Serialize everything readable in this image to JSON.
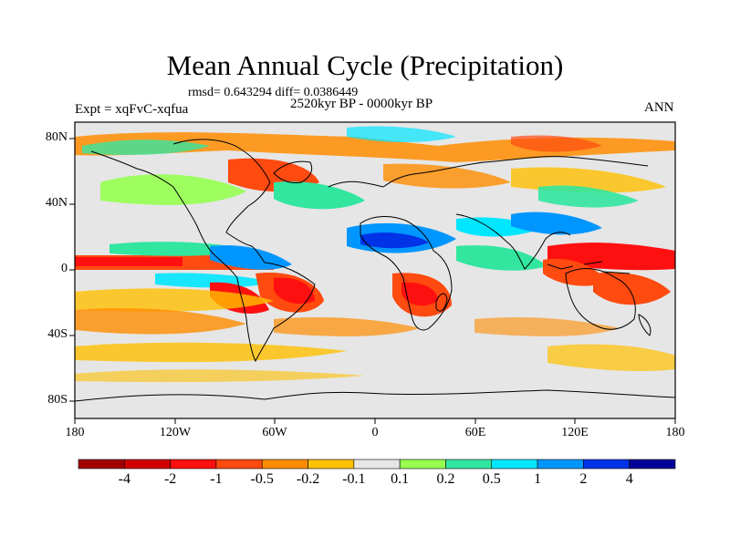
{
  "title": "Mean Annual Cycle (Precipitation)",
  "stats": "rmsd= 0.643294  diff= 0.0386449",
  "period": "2520kyr BP - 0000kyr BP",
  "experiment": "Expt = xqFvC-xqfua",
  "season": "ANN",
  "lat_labels": [
    "80N",
    "40N",
    "0",
    "40S",
    "80S"
  ],
  "lon_labels": [
    "180",
    "120W",
    "60W",
    "0",
    "60E",
    "120E",
    "180"
  ],
  "colorbar": {
    "labels": [
      "-4",
      "-2",
      "-1",
      "-0.5",
      "-0.2",
      "-0.1",
      "0.1",
      "0.2",
      "0.5",
      "1",
      "2",
      "4"
    ],
    "colors": [
      "#a00000",
      "#d00000",
      "#ff1010",
      "#ff4a10",
      "#ff8c00",
      "#ffc000",
      "#e6e6e6",
      "#96ff50",
      "#32e6a0",
      "#00e6ff",
      "#0096ff",
      "#0032e6",
      "#000096"
    ]
  }
}
